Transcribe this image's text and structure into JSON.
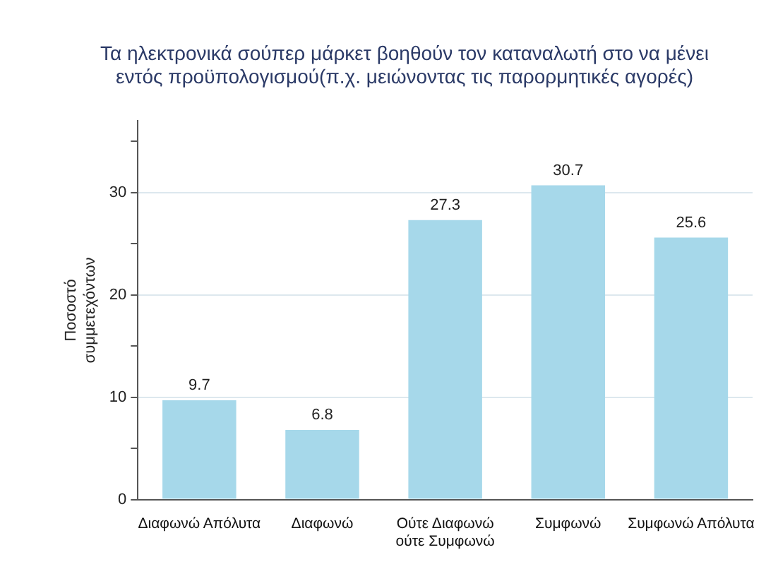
{
  "chart_data": {
    "type": "bar",
    "title": "Τα ηλεκτρονικά σούπερ μάρκετ βοηθούν τον καταναλωτή στο να μένει εντός προϋπολογισμού(π.χ. μειώνοντας τις παρορμητικές αγορές)",
    "ylabel": "Ποσοστό συμμετεχόντων",
    "categories": [
      "Διαφωνώ Απόλυτα",
      "Διαφωνώ",
      "Ούτε Διαφωνώ ούτε Συμφωνώ",
      "Συμφωνώ",
      "Συμφωνώ Απόλυτα"
    ],
    "values": [
      9.7,
      6.8,
      27.3,
      30.7,
      25.6
    ],
    "color": "#a6d8ea",
    "ylim": [
      0,
      37
    ],
    "yticks": [
      0,
      {
        "value": 5,
        "label": null
      },
      10,
      {
        "value": 15,
        "label": null
      },
      20,
      {
        "value": 25,
        "label": null
      },
      30,
      {
        "value": 35,
        "label": null
      }
    ],
    "grid": "y",
    "data_labels": true,
    "legend": false
  }
}
